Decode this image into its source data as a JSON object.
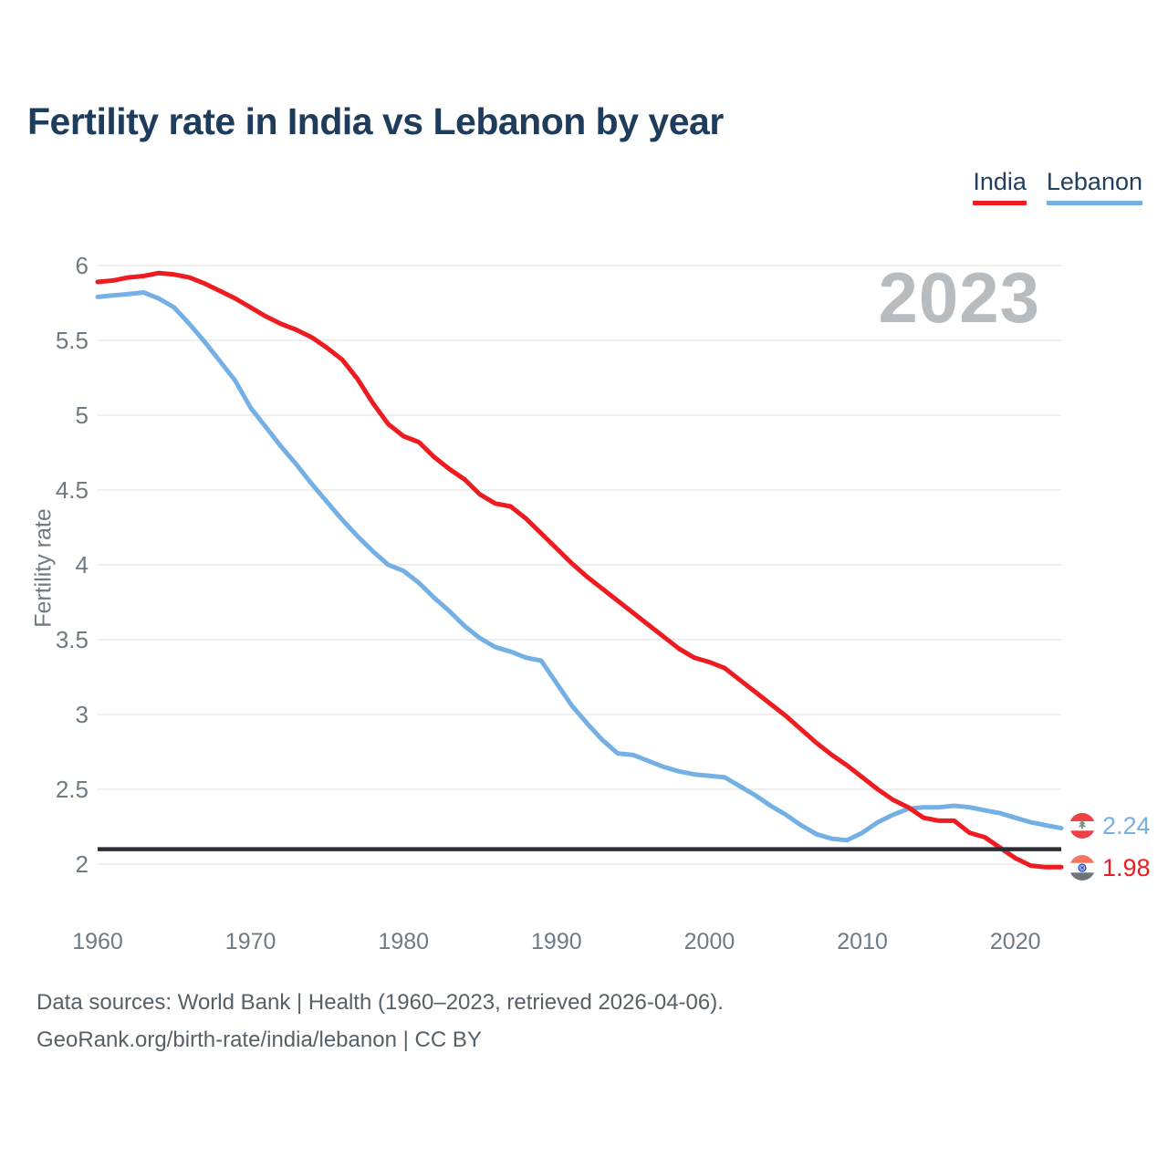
{
  "header": {
    "title": "Fertility rate in India vs Lebanon by year"
  },
  "legend": [
    {
      "label": "India",
      "color": "#ee1c20"
    },
    {
      "label": "Lebanon",
      "color": "#74b0e4"
    }
  ],
  "watermark": "2023",
  "footer": {
    "line1": "Data sources: World Bank | Health (1960–2023, retrieved 2026-04-06).",
    "line2": "GeoRank.org/birth-rate/india/lebanon | CC BY"
  },
  "end_labels": [
    {
      "series": "Lebanon",
      "value": "2.24",
      "color": "#74b0e4",
      "flag": "lebanon-flag-icon"
    },
    {
      "series": "India",
      "value": "1.98",
      "color": "#ee1c20",
      "flag": "india-flag-icon"
    }
  ],
  "chart_data": {
    "type": "line",
    "title": "Fertility rate in India vs Lebanon by year",
    "xlabel": "",
    "ylabel": "Fertility rate",
    "xlim": [
      1960,
      2023
    ],
    "ylim": [
      2,
      6
    ],
    "grid": true,
    "legend_position": "top-right",
    "x_ticks": [
      1960,
      1970,
      1980,
      1990,
      2000,
      2010,
      2020
    ],
    "y_ticks": [
      2,
      2.5,
      3,
      3.5,
      4,
      4.5,
      5,
      5.5,
      6
    ],
    "reference_line": {
      "value": 2.1,
      "color": "#2b2f33",
      "label": ""
    },
    "x": [
      1960,
      1961,
      1962,
      1963,
      1964,
      1965,
      1966,
      1967,
      1968,
      1969,
      1970,
      1971,
      1972,
      1973,
      1974,
      1975,
      1976,
      1977,
      1978,
      1979,
      1980,
      1981,
      1982,
      1983,
      1984,
      1985,
      1986,
      1987,
      1988,
      1989,
      1990,
      1991,
      1992,
      1993,
      1994,
      1995,
      1996,
      1997,
      1998,
      1999,
      2000,
      2001,
      2002,
      2003,
      2004,
      2005,
      2006,
      2007,
      2008,
      2009,
      2010,
      2011,
      2012,
      2013,
      2014,
      2015,
      2016,
      2017,
      2018,
      2019,
      2020,
      2021,
      2022,
      2023
    ],
    "series": [
      {
        "name": "Lebanon",
        "color": "#74b0e4",
        "final_value": 2.24,
        "values": [
          5.79,
          5.8,
          5.81,
          5.82,
          5.78,
          5.72,
          5.61,
          5.49,
          5.36,
          5.23,
          5.05,
          4.92,
          4.79,
          4.67,
          4.54,
          4.42,
          4.3,
          4.19,
          4.09,
          4.0,
          3.96,
          3.88,
          3.78,
          3.69,
          3.59,
          3.51,
          3.45,
          3.42,
          3.38,
          3.36,
          3.21,
          3.06,
          2.94,
          2.83,
          2.74,
          2.73,
          2.69,
          2.65,
          2.62,
          2.6,
          2.59,
          2.58,
          2.52,
          2.46,
          2.39,
          2.33,
          2.26,
          2.2,
          2.17,
          2.16,
          2.21,
          2.28,
          2.33,
          2.37,
          2.38,
          2.38,
          2.39,
          2.38,
          2.36,
          2.34,
          2.31,
          2.28,
          2.26,
          2.24
        ]
      },
      {
        "name": "India",
        "color": "#ee1c20",
        "final_value": 1.98,
        "values": [
          5.89,
          5.9,
          5.92,
          5.93,
          5.95,
          5.94,
          5.92,
          5.88,
          5.83,
          5.78,
          5.72,
          5.66,
          5.61,
          5.57,
          5.52,
          5.45,
          5.37,
          5.24,
          5.08,
          4.94,
          4.86,
          4.82,
          4.72,
          4.64,
          4.57,
          4.47,
          4.41,
          4.39,
          4.31,
          4.21,
          4.11,
          4.01,
          3.92,
          3.84,
          3.76,
          3.68,
          3.6,
          3.52,
          3.44,
          3.38,
          3.35,
          3.31,
          3.23,
          3.15,
          3.07,
          2.99,
          2.9,
          2.81,
          2.73,
          2.66,
          2.58,
          2.5,
          2.43,
          2.38,
          2.31,
          2.29,
          2.29,
          2.21,
          2.18,
          2.11,
          2.04,
          1.99,
          1.98,
          1.98
        ]
      }
    ]
  }
}
